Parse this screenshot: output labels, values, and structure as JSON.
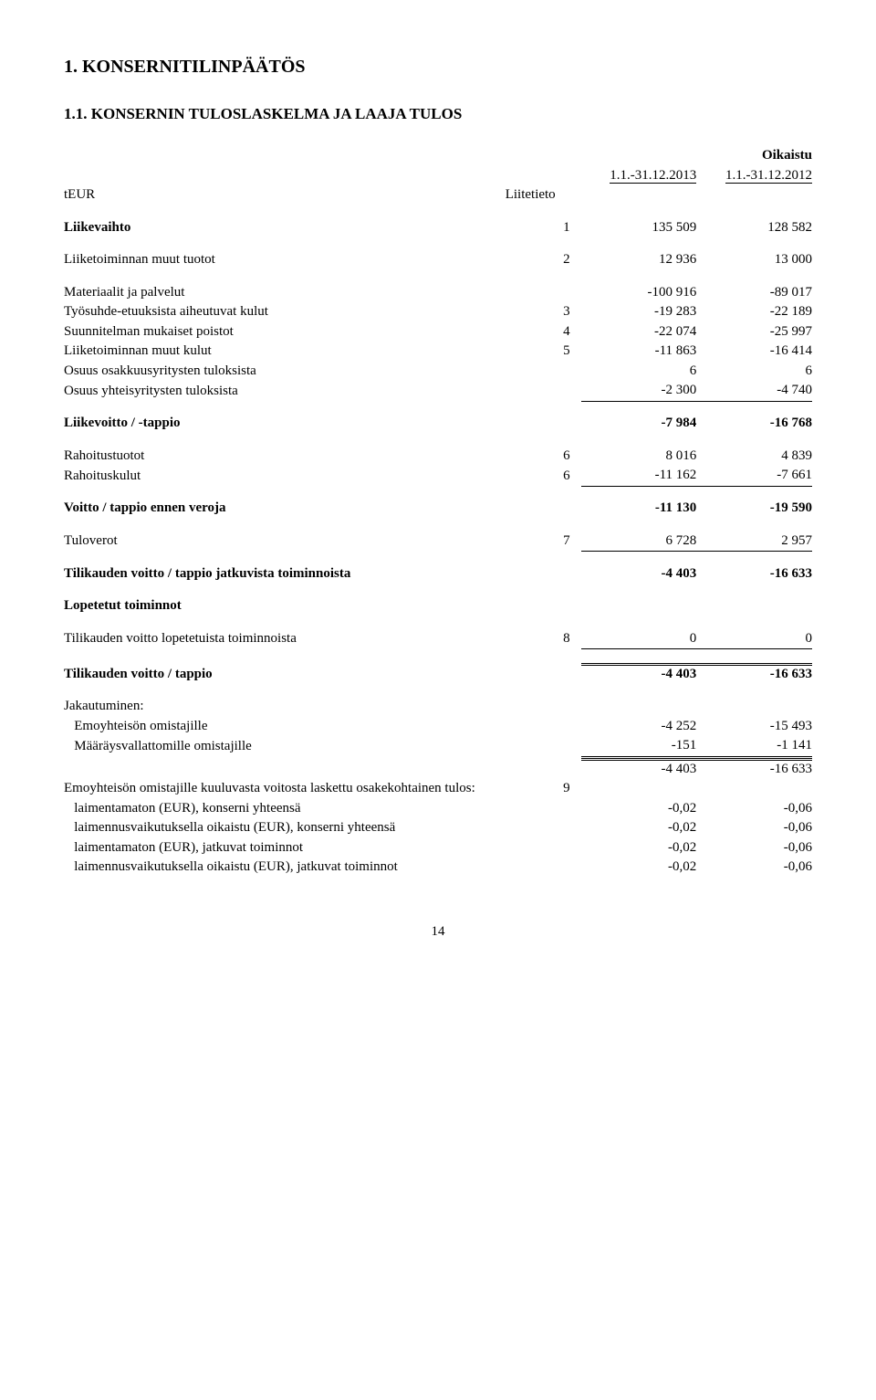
{
  "page_number": "14",
  "heading1": "1. KONSERNITILINPÄÄTÖS",
  "heading2": "1.1. KONSERNIN TULOSLASKELMA JA LAAJA TULOS",
  "column_headers": {
    "oikaistu": "Oikaistu",
    "period1": "1.1.-31.12.2013",
    "period2": "1.1.-31.12.2012"
  },
  "teur": "tEUR",
  "liitetieto": "Liitetieto",
  "rows": {
    "liikevaihto": {
      "label": "Liikevaihto",
      "note": "1",
      "v1": "135 509",
      "v2": "128 582"
    },
    "liiketoiminnan_muut_tuotot": {
      "label": "Liiketoiminnan muut tuotot",
      "note": "2",
      "v1": "12 936",
      "v2": "13 000"
    },
    "materiaalit": {
      "label": "Materiaalit ja palvelut",
      "note": "",
      "v1": "-100 916",
      "v2": "-89 017"
    },
    "tyosuhde": {
      "label": "Työsuhde-etuuksista aiheutuvat kulut",
      "note": "3",
      "v1": "-19 283",
      "v2": "-22 189"
    },
    "suunnitelman": {
      "label": "Suunnitelman mukaiset poistot",
      "note": "4",
      "v1": "-22 074",
      "v2": "-25 997"
    },
    "liike_muut_kulut": {
      "label": "Liiketoiminnan muut kulut",
      "note": "5",
      "v1": "-11 863",
      "v2": "-16 414"
    },
    "osuus_osakkuus": {
      "label": "Osuus osakkuusyritysten tuloksista",
      "note": "",
      "v1": "6",
      "v2": "6"
    },
    "osuus_yhteis": {
      "label": "Osuus yhteisyritysten tuloksista",
      "note": "",
      "v1": "-2 300",
      "v2": "-4 740"
    },
    "liikevoitto": {
      "label": "Liikevoitto / -tappio",
      "note": "",
      "v1": "-7 984",
      "v2": "-16 768"
    },
    "rahoitustuotot": {
      "label": "Rahoitustuotot",
      "note": "6",
      "v1": "8 016",
      "v2": "4 839"
    },
    "rahoituskulut": {
      "label": "Rahoituskulut",
      "note": "6",
      "v1": "-11 162",
      "v2": "-7 661"
    },
    "voitto_ennen_veroja": {
      "label": "Voitto / tappio ennen veroja",
      "note": "",
      "v1": "-11 130",
      "v2": "-19 590"
    },
    "tuloverot": {
      "label": "Tuloverot",
      "note": "7",
      "v1": "6 728",
      "v2": "2 957"
    },
    "tilikauden_jatk": {
      "label": "Tilikauden voitto / tappio jatkuvista toiminnoista",
      "note": "",
      "v1": "-4 403",
      "v2": "-16 633"
    },
    "lopetetut_header": {
      "label": "Lopetetut toiminnot"
    },
    "tilikauden_lopetetuista": {
      "label": "Tilikauden voitto lopetetuista toiminnoista",
      "note": "8",
      "v1": "0",
      "v2": "0"
    },
    "tilikauden_voitto": {
      "label": "Tilikauden voitto / tappio",
      "note": "",
      "v1": "-4 403",
      "v2": "-16 633"
    },
    "jakautuminen": {
      "label": "Jakautuminen:"
    },
    "emoyhteison_omistajille": {
      "label": "   Emoyhteisön omistajille",
      "note": "",
      "v1": "-4 252",
      "v2": "-15 493"
    },
    "maaraysvallattomille": {
      "label": "   Määräysvallattomille omistajille",
      "note": "",
      "v1": "-151",
      "v2": "-1 141"
    },
    "jak_total": {
      "label": "",
      "note": "",
      "v1": "-4 403",
      "v2": "-16 633"
    },
    "emo_osake_header": {
      "label": "Emoyhteisön omistajille kuuluvasta voitosta laskettu osakekohtainen tulos:",
      "note": "9",
      "v1": "",
      "v2": ""
    },
    "laimentamaton_konserni": {
      "label": "   laimentamaton (EUR), konserni yhteensä",
      "note": "",
      "v1": "-0,02",
      "v2": "-0,06"
    },
    "laimennus_konserni": {
      "label": "   laimennusvaikutuksella oikaistu (EUR), konserni yhteensä",
      "note": "",
      "v1": "-0,02",
      "v2": "-0,06"
    },
    "laimentamaton_jatk": {
      "label": "   laimentamaton (EUR), jatkuvat toiminnot",
      "note": "",
      "v1": "-0,02",
      "v2": "-0,06"
    },
    "laimennus_jatk": {
      "label": "   laimennusvaikutuksella oikaistu (EUR), jatkuvat toiminnot",
      "note": "",
      "v1": "-0,02",
      "v2": "-0,06"
    }
  }
}
